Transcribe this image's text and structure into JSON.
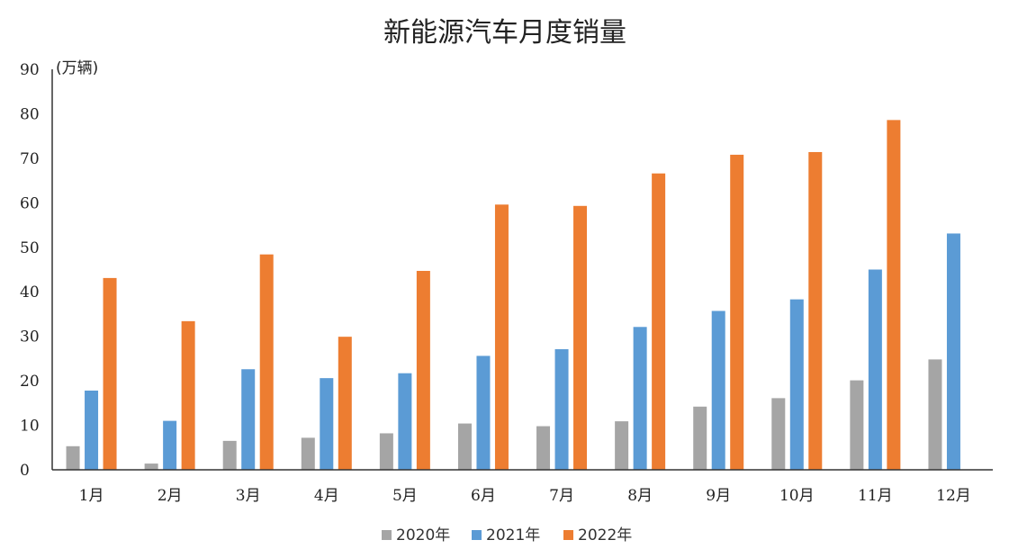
{
  "chart_data": {
    "type": "bar",
    "title": "新能源汽车月度销量",
    "unit_label": "(万辆)",
    "categories": [
      "1月",
      "2月",
      "3月",
      "4月",
      "5月",
      "6月",
      "7月",
      "8月",
      "9月",
      "10月",
      "11月",
      "12月"
    ],
    "series": [
      {
        "name": "2020年",
        "color": "#a5a5a5",
        "values": [
          5.3,
          1.4,
          6.5,
          7.2,
          8.2,
          10.4,
          9.8,
          10.9,
          14.2,
          16.1,
          20.1,
          24.8
        ]
      },
      {
        "name": "2021年",
        "color": "#5b9bd5",
        "values": [
          17.8,
          11.0,
          22.6,
          20.6,
          21.7,
          25.6,
          27.1,
          32.1,
          35.7,
          38.3,
          45.0,
          53.1
        ]
      },
      {
        "name": "2022年",
        "color": "#ed7d31",
        "values": [
          43.1,
          33.4,
          48.4,
          29.9,
          44.7,
          59.6,
          59.3,
          66.6,
          70.8,
          71.4,
          78.6,
          null
        ]
      }
    ],
    "ylim": [
      0,
      90
    ],
    "yticks": [
      0,
      10,
      20,
      30,
      40,
      50,
      60,
      70,
      80,
      90
    ],
    "grid": false,
    "legend_position": "bottom"
  }
}
